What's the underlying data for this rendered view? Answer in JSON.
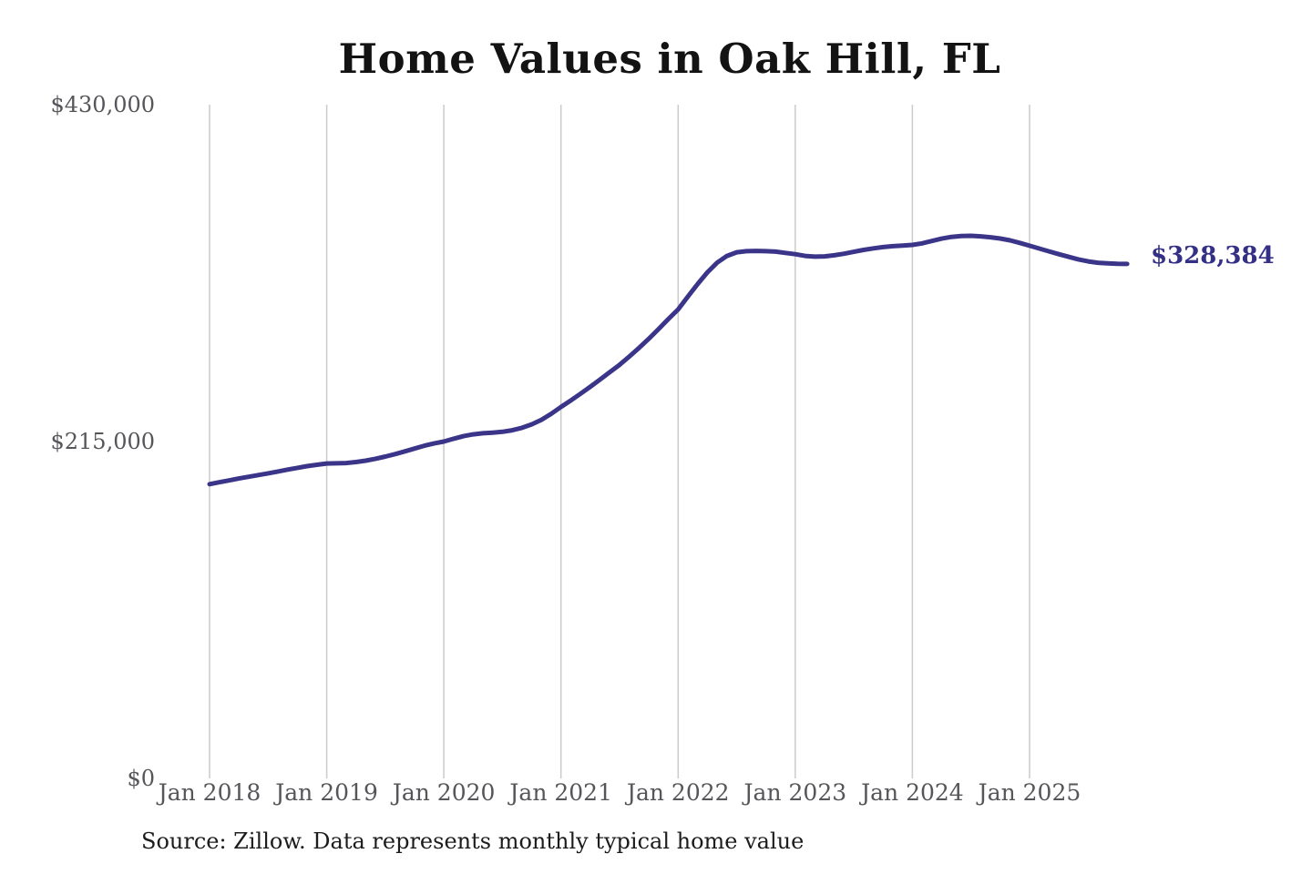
{
  "page": {
    "title": "Home Values in Oak Hill, FL",
    "source_note": "Source: Zillow. Data represents monthly typical home value"
  },
  "chart_data": {
    "type": "line",
    "title": "Home Values in Oak Hill, FL",
    "series_name": "Monthly typical home value",
    "unit": "USD",
    "ylim": [
      0,
      430000
    ],
    "y_ticks": [
      0,
      215000,
      430000
    ],
    "y_tick_labels": [
      "$0",
      "$215,000",
      "$430,000"
    ],
    "x_tick_labels": [
      "Jan 2018",
      "Jan 2019",
      "Jan 2020",
      "Jan 2021",
      "Jan 2022",
      "Jan 2023",
      "Jan 2024",
      "Jan 2025"
    ],
    "grid": "vertical-only",
    "legend": "none",
    "line_color": "#3a3589",
    "label_color": "#343086",
    "gridline_color": "#cbcbcb",
    "axis_text_color": "#55555a",
    "latest_value": 328384,
    "latest_value_label": "$328,384",
    "source": "Source: Zillow. Data represents monthly typical home value",
    "x": [
      "2018-01",
      "2018-02",
      "2018-03",
      "2018-04",
      "2018-05",
      "2018-06",
      "2018-07",
      "2018-08",
      "2018-09",
      "2018-10",
      "2018-11",
      "2018-12",
      "2019-01",
      "2019-02",
      "2019-03",
      "2019-04",
      "2019-05",
      "2019-06",
      "2019-07",
      "2019-08",
      "2019-09",
      "2019-10",
      "2019-11",
      "2019-12",
      "2020-01",
      "2020-02",
      "2020-03",
      "2020-04",
      "2020-05",
      "2020-06",
      "2020-07",
      "2020-08",
      "2020-09",
      "2020-10",
      "2020-11",
      "2020-12",
      "2021-01",
      "2021-02",
      "2021-03",
      "2021-04",
      "2021-05",
      "2021-06",
      "2021-07",
      "2021-08",
      "2021-09",
      "2021-10",
      "2021-11",
      "2021-12",
      "2022-01",
      "2022-02",
      "2022-03",
      "2022-04",
      "2022-05",
      "2022-06",
      "2022-07",
      "2022-08",
      "2022-09",
      "2022-10",
      "2022-11",
      "2022-12",
      "2023-01",
      "2023-02",
      "2023-03",
      "2023-04",
      "2023-05",
      "2023-06",
      "2023-07",
      "2023-08",
      "2023-09",
      "2023-10",
      "2023-11",
      "2023-12",
      "2024-01",
      "2024-02",
      "2024-03",
      "2024-04",
      "2024-05",
      "2024-06",
      "2024-07",
      "2024-08",
      "2024-09",
      "2024-10",
      "2024-11",
      "2024-12",
      "2025-01",
      "2025-02",
      "2025-03",
      "2025-04",
      "2025-05",
      "2025-06",
      "2025-07",
      "2025-08",
      "2025-09",
      "2025-10",
      "2025-11"
    ],
    "values": [
      187800,
      189000,
      190200,
      191400,
      192500,
      193600,
      194700,
      195900,
      197100,
      198200,
      199300,
      200200,
      201000,
      201100,
      201300,
      201900,
      202800,
      204000,
      205400,
      207000,
      208700,
      210500,
      212300,
      213800,
      215000,
      216800,
      218400,
      219600,
      220300,
      220700,
      221200,
      222200,
      223800,
      226000,
      228900,
      232700,
      237100,
      241200,
      245500,
      250000,
      254600,
      259300,
      264000,
      269300,
      274800,
      280600,
      286800,
      293200,
      299300,
      307500,
      315500,
      323000,
      329200,
      333500,
      335800,
      336500,
      336700,
      336500,
      336200,
      335400,
      334600,
      333500,
      333000,
      333200,
      333900,
      334900,
      336100,
      337300,
      338300,
      339100,
      339700,
      340100,
      340500,
      341500,
      343000,
      344500,
      345600,
      346200,
      346300,
      346000,
      345400,
      344600,
      343400,
      341800,
      340000,
      338200,
      336400,
      334600,
      332900,
      331300,
      330000,
      329100,
      328700,
      328450,
      328384
    ]
  }
}
